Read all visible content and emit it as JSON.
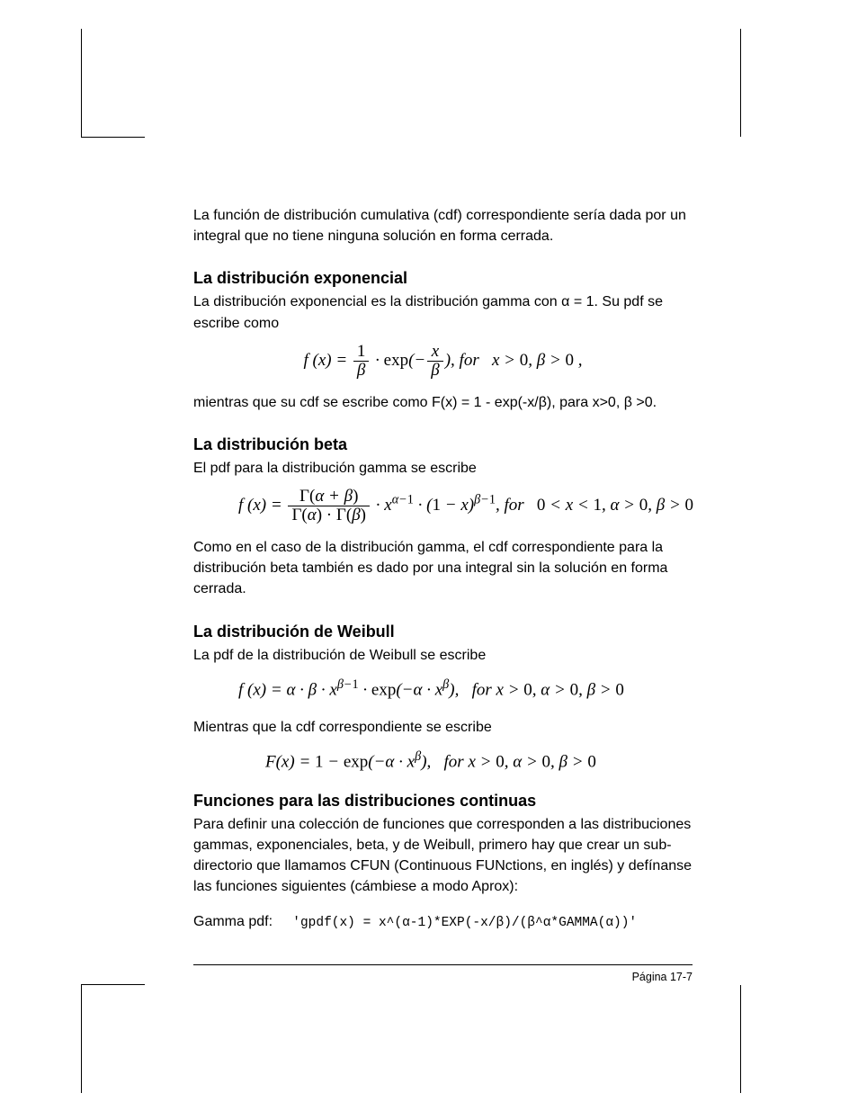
{
  "intro": {
    "para": "La función de distribución cumulativa (cdf) correspondiente sería dada por un integral que no tiene ninguna solución en forma cerrada."
  },
  "sections": {
    "exp": {
      "heading": "La distribución exponencial",
      "para1": "La distribución exponencial es la distribución gamma con α = 1.  Su pdf se escribe como",
      "formula_html": "f (x) = <span class=\"frac\"><span class=\"num\"><span class=\"upright\">1</span></span><span class=\"den\">β</span></span> · <span class=\"upright\">exp</span>(−<span class=\"frac\"><span class=\"num\">x</span><span class=\"den\">β</span></span>), for&nbsp;&nbsp;&nbsp;x &gt; <span class=\"upright\">0</span>, β &gt; <span class=\"upright\">0</span> ,",
      "para2": "mientras que su cdf se escribe como F(x) = 1 - exp(-x/β), para x>0,  β >0."
    },
    "beta": {
      "heading": "La distribución beta",
      "para1": "El pdf para la distribución gamma se escribe",
      "formula_html": "f (x) = <span class=\"frac\"><span class=\"num\"><span class=\"upright\">Γ(</span>α + β<span class=\"upright\">)</span></span><span class=\"den\"><span class=\"upright\">Γ(</span>α<span class=\"upright\">) · Γ(</span>β<span class=\"upright\">)</span></span></span> · x<sup>α−<span class=\"upright\">1</span></sup> · (<span class=\"upright\">1</span> − x)<sup>β−<span class=\"upright\">1</span></sup>, for&nbsp;&nbsp;&nbsp;<span class=\"upright\">0</span> &lt; x &lt; <span class=\"upright\">1</span>, α &gt; <span class=\"upright\">0</span>, β &gt; <span class=\"upright\">0</span>",
      "para2": "Como en el caso de la distribución gamma, el cdf correspondiente para la distribución beta también es dado por una integral sin la solución en forma cerrada."
    },
    "weibull": {
      "heading": "La distribución de Weibull",
      "para1": "La pdf de la distribución de Weibull se escribe",
      "formula1_html": "f (x) = α · β · x<sup>β−<span class=\"upright\">1</span></sup> · <span class=\"upright\">exp</span>(−α · x<sup>β</sup>),&nbsp;&nbsp;&nbsp;for x &gt; <span class=\"upright\">0</span>, α &gt; <span class=\"upright\">0</span>, β &gt; <span class=\"upright\">0</span>",
      "para2": "Mientras que la cdf correspondiente se escribe",
      "formula2_html": "F(x) = <span class=\"upright\">1</span> − <span class=\"upright\">exp</span>(−α · x<sup>β</sup>),&nbsp;&nbsp;&nbsp;for x &gt; <span class=\"upright\">0</span>, α &gt; <span class=\"upright\">0</span>, β &gt; <span class=\"upright\">0</span>"
    },
    "funcs": {
      "heading": "Funciones para las distribuciones continuas",
      "para1": "Para definir una colección de funciones que corresponden a las distribuciones gammas, exponenciales, beta, y de Weibull, primero hay que crear un sub-directorio que llamamos CFUN (Continuous FUNctions, en inglés) y defínanse las funciones siguientes (cámbiese a modo Aprox):",
      "gamma_label": "Gamma pdf:",
      "gamma_code": "'gpdf(x) = x^(α-1)*EXP(-x/β)/(β^α*GAMMA(α))'"
    }
  },
  "footer": {
    "page": "Página 17-7"
  }
}
